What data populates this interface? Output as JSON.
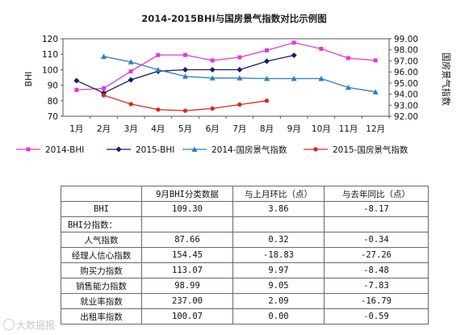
{
  "chart_data": {
    "type": "line",
    "title": "2014-2015BHI与国房景气指数对比示例图",
    "categories": [
      "1月",
      "2月",
      "3月",
      "4月",
      "5月",
      "6月",
      "7月",
      "8月",
      "9月",
      "10月",
      "11月",
      "12月"
    ],
    "ylabel": "BHI",
    "y2label": "国房景气指数",
    "ylim": [
      70,
      120
    ],
    "yticks": [
      "70",
      "80",
      "90",
      "100",
      "110",
      "120"
    ],
    "y2lim": [
      92,
      99
    ],
    "y2ticks": [
      "92.00",
      "93.00",
      "94.00",
      "95.00",
      "96.00",
      "97.00",
      "98.00",
      "99.00"
    ],
    "grid": false,
    "legend_position": "bottom",
    "series": [
      {
        "name": "2014-BHI",
        "axis": "left",
        "color": "#e03ad6",
        "marker": "square",
        "values": [
          87,
          88,
          99,
          109.5,
          109.5,
          106,
          108,
          112.5,
          117.5,
          113.5,
          107.5,
          106
        ]
      },
      {
        "name": "2015-BHI",
        "axis": "left",
        "color": "#1a1a6e",
        "marker": "diamond",
        "values": [
          93,
          85,
          93.5,
          99,
          100,
          100,
          100,
          105.5,
          109.3,
          null,
          null,
          null
        ]
      },
      {
        "name": "2014-国房景气指数",
        "axis": "right",
        "color": "#2d7fc4",
        "marker": "triangle",
        "values": [
          null,
          97.4,
          96.9,
          96.2,
          95.6,
          95.45,
          95.45,
          95.4,
          95.4,
          95.4,
          94.6,
          94.2
        ]
      },
      {
        "name": "2015-国房景气指数",
        "axis": "right",
        "color": "#d62a1e",
        "marker": "circle",
        "values": [
          null,
          93.9,
          93.1,
          92.6,
          92.5,
          92.7,
          93.05,
          93.4,
          null,
          null,
          null,
          null
        ]
      }
    ]
  },
  "table": {
    "header": [
      "",
      "9月BHI分类数据",
      "与上月环比（点）",
      "与去年同比（点）"
    ],
    "rows": [
      {
        "label": "BHI",
        "v1": "109.30",
        "v2": "3.86",
        "v3": "-8.17",
        "section": false
      },
      {
        "label": "BHI分指数：",
        "v1": "",
        "v2": "",
        "v3": "",
        "section": true
      },
      {
        "label": "人气指数",
        "v1": "87.66",
        "v2": "0.32",
        "v3": "-0.34",
        "section": false
      },
      {
        "label": "经理人信心指数",
        "v1": "154.45",
        "v2": "-18.83",
        "v3": "-27.26",
        "section": false
      },
      {
        "label": "购买力指数",
        "v1": "113.07",
        "v2": "9.97",
        "v3": "-8.48",
        "section": false
      },
      {
        "label": "销售能力指数",
        "v1": "98.99",
        "v2": "9.05",
        "v3": "-7.83",
        "section": false
      },
      {
        "label": "就业率指数",
        "v1": "237.00",
        "v2": "2.09",
        "v3": "-16.79",
        "section": false
      },
      {
        "label": "出租率指数",
        "v1": "100.07",
        "v2": "0.00",
        "v3": "-0.59",
        "section": false
      }
    ]
  },
  "watermark": "大数据报"
}
